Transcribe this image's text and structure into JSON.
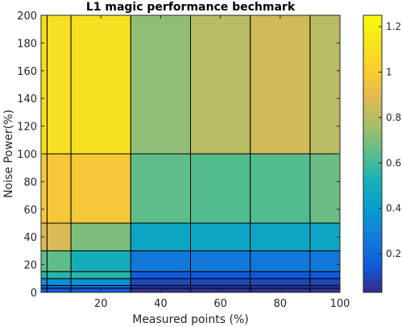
{
  "chart_data": {
    "type": "heatmap",
    "title": "L1 magic performance bechmark",
    "xlabel": "Measured points (%)",
    "ylabel": "Noise Power(%)",
    "xlim": [
      0,
      100
    ],
    "ylim": [
      0,
      200
    ],
    "x_ticks": [
      20,
      40,
      60,
      80,
      100
    ],
    "y_ticks": [
      0,
      20,
      40,
      60,
      80,
      100,
      120,
      140,
      160,
      180,
      200
    ],
    "x_edges": [
      0,
      2,
      10,
      30,
      50,
      70,
      90,
      100
    ],
    "y_edges": [
      0,
      3,
      5,
      10,
      15,
      30,
      50,
      100,
      200
    ],
    "values": [
      [
        0.15,
        0.15,
        0.15,
        0.05,
        0.05,
        0.05,
        0.05
      ],
      [
        0.2,
        0.2,
        0.2,
        0.07,
        0.07,
        0.07,
        0.07
      ],
      [
        0.35,
        0.35,
        0.35,
        0.1,
        0.1,
        0.1,
        0.1
      ],
      [
        0.55,
        0.55,
        0.55,
        0.15,
        0.15,
        0.15,
        0.15
      ],
      [
        0.65,
        0.65,
        0.5,
        0.25,
        0.25,
        0.25,
        0.25
      ],
      [
        0.87,
        0.87,
        0.7,
        0.45,
        0.45,
        0.45,
        0.45
      ],
      [
        0.97,
        0.97,
        0.97,
        0.65,
        0.63,
        0.63,
        0.67
      ],
      [
        1.1,
        1.1,
        1.1,
        0.73,
        0.8,
        0.85,
        0.8
      ]
    ],
    "colorbar": {
      "ticks": [
        0.2,
        0.4,
        0.6,
        0.8,
        1,
        1.2
      ],
      "range": [
        0.03,
        1.25
      ],
      "colormap": "parula"
    },
    "grid": false
  }
}
